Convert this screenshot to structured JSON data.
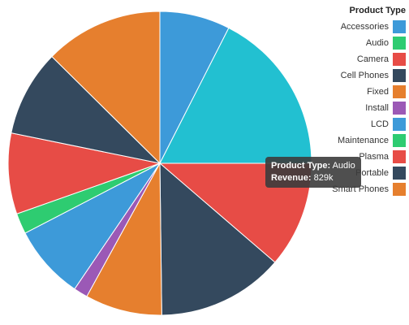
{
  "chart_data": {
    "type": "pie",
    "title": "",
    "legend_title": "Product Type",
    "legend_position": "top-right",
    "categories": [
      "Accessories",
      "Audio",
      "Camera",
      "Cell Phones",
      "Fixed",
      "Install",
      "LCD",
      "Maintenance",
      "Plasma",
      "Portable",
      "Smart Phones"
    ],
    "slices": [
      {
        "label": "Accessories",
        "value": 7.5,
        "color": "#3d9ad9"
      },
      {
        "label": "Audio",
        "value": 17.5,
        "color": "#22c0d1"
      },
      {
        "label": "Camera",
        "value": 11.3,
        "color": "#e74c46"
      },
      {
        "label": "Cell Phones",
        "value": 13.5,
        "color": "#34495e"
      },
      {
        "label": "Fixed",
        "value": 8.2,
        "color": "#e67f2e"
      },
      {
        "label": "Install",
        "value": 1.5,
        "color": "#9b59b6"
      },
      {
        "label": "LCD",
        "value": 7.9,
        "color": "#3d9ad9"
      },
      {
        "label": "Maintenance",
        "value": 2.2,
        "color": "#2ecc71"
      },
      {
        "label": "Plasma",
        "value": 8.6,
        "color": "#e74c46"
      },
      {
        "label": "Portable",
        "value": 9.2,
        "color": "#34495e"
      },
      {
        "label": "Smart Phones",
        "value": 12.6,
        "color": "#e67f2e"
      }
    ],
    "legend_colors": [
      "#3d9ad9",
      "#2ecc71",
      "#e74c46",
      "#34495e",
      "#e67f2e",
      "#9b59b6",
      "#3d9ad9",
      "#2ecc71",
      "#e74c46",
      "#34495e",
      "#e67f2e"
    ]
  },
  "tooltip": {
    "type_label": "Product Type:",
    "type_value": "Audio",
    "revenue_label": "Revenue:",
    "revenue_value": "829k"
  }
}
